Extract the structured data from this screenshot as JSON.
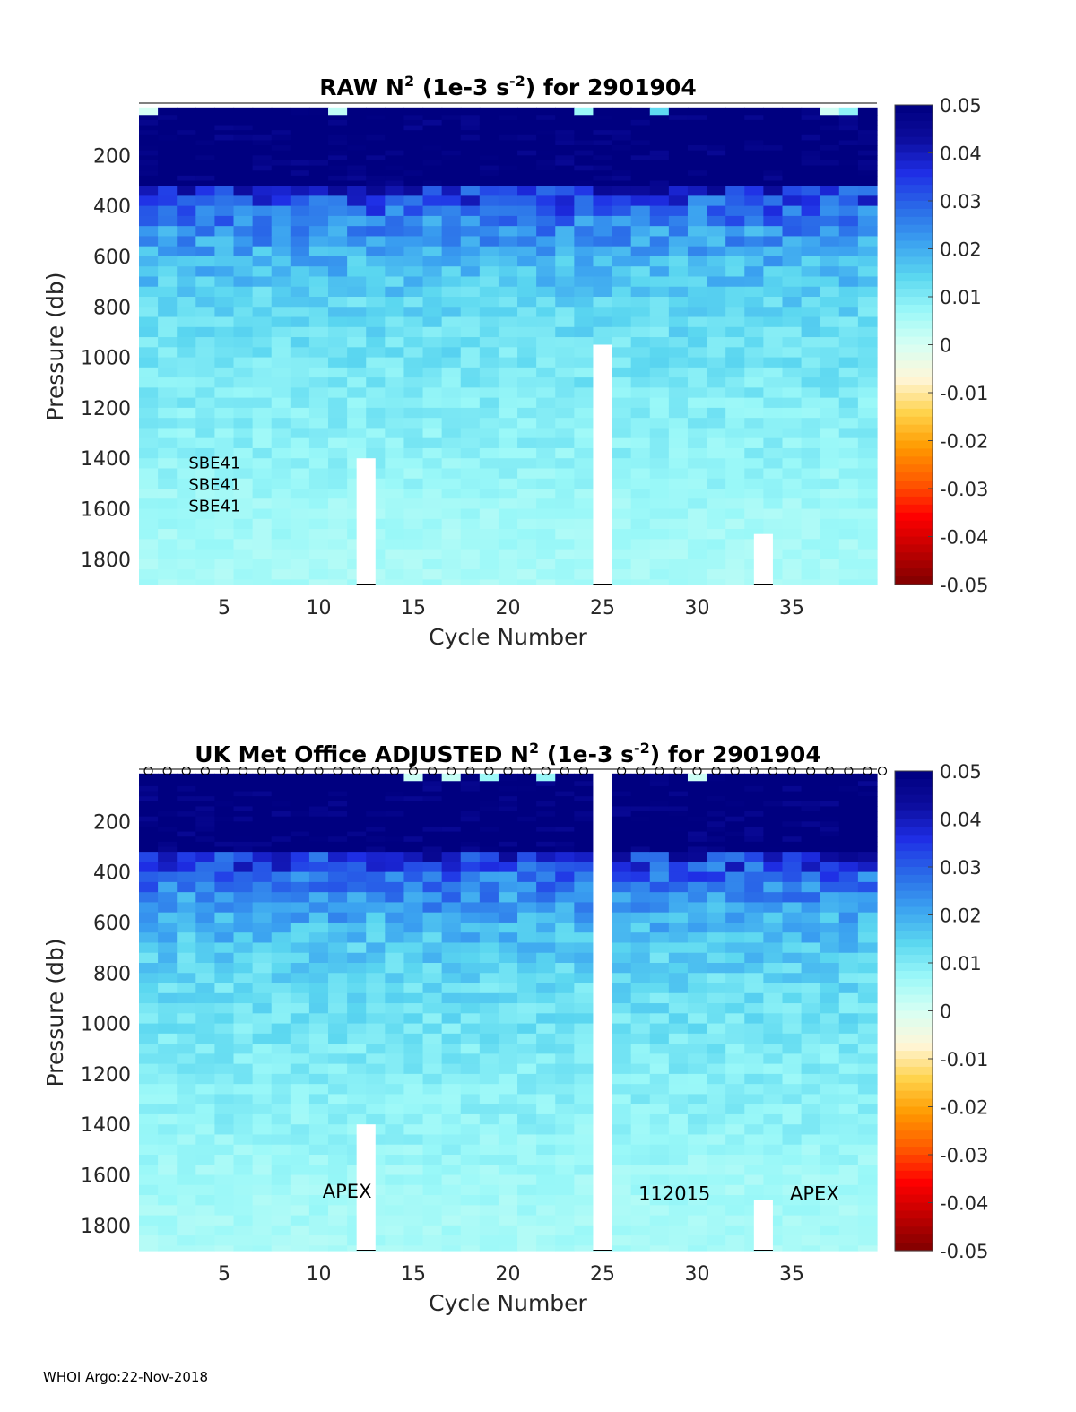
{
  "footer": "WHOI Argo:22-Nov-2018",
  "colors": {
    "colormap": [
      "#7f0000",
      "#c00000",
      "#ff0000",
      "#ff5a00",
      "#ff9a00",
      "#ffd24a",
      "#fff6d8",
      "#d6fff4",
      "#9af8f8",
      "#5ad6f0",
      "#3aa0f0",
      "#2a6ae8",
      "#1f2fe6",
      "#0c0c9c",
      "#000080"
    ],
    "gap": "#ffffff"
  },
  "chart_data": [
    {
      "type": "heatmap",
      "title_parts": {
        "pre": "RAW N",
        "sup1": "2",
        "mid": " (1e-3 s",
        "sup2": "-2",
        "post": ") for 2901904"
      },
      "xlabel": "Cycle Number",
      "ylabel": "Pressure (db)",
      "xlim": [
        1,
        39
      ],
      "ylim": [
        0,
        1900
      ],
      "xticks": [
        "5",
        "10",
        "15",
        "20",
        "25",
        "30",
        "35"
      ],
      "xtick_values": [
        5,
        10,
        15,
        20,
        25,
        30,
        35
      ],
      "yticks": [
        "200",
        "400",
        "600",
        "800",
        "1000",
        "1200",
        "1400",
        "1600",
        "1800"
      ],
      "ytick_values": [
        200,
        400,
        600,
        800,
        1000,
        1200,
        1400,
        1600,
        1800
      ],
      "colorbar": {
        "range": [
          -0.05,
          0.05
        ],
        "ticks": [
          "0.05",
          "0.04",
          "0.03",
          "0.02",
          "0.01",
          "0",
          "-0.01",
          "-0.02",
          "-0.03",
          "-0.04",
          "-0.05"
        ]
      },
      "depth_profile": [
        {
          "p": 20,
          "n2": 0.05
        },
        {
          "p": 300,
          "n2": 0.05
        },
        {
          "p": 330,
          "n2": 0.035
        },
        {
          "p": 450,
          "n2": 0.025
        },
        {
          "p": 600,
          "n2": 0.018
        },
        {
          "p": 800,
          "n2": 0.013
        },
        {
          "p": 1000,
          "n2": 0.011
        },
        {
          "p": 1200,
          "n2": 0.009
        },
        {
          "p": 1400,
          "n2": 0.008
        },
        {
          "p": 1600,
          "n2": 0.006
        },
        {
          "p": 1900,
          "n2": 0.005
        }
      ],
      "gaps": [
        {
          "cycle": 12.5,
          "from_p": 1400
        },
        {
          "cycle": 25,
          "from_p": 950
        },
        {
          "cycle": 33.5,
          "from_p": 1700
        }
      ],
      "flag_markers": false,
      "annotations": [
        {
          "text": "SBE41",
          "x": 4.5,
          "y": 1440
        },
        {
          "text": "SBE41",
          "x": 4.5,
          "y": 1525
        },
        {
          "text": "SBE41",
          "x": 4.5,
          "y": 1610
        }
      ]
    },
    {
      "type": "heatmap",
      "title_parts": {
        "pre": "UK Met Office  ADJUSTED N",
        "sup1": "2",
        "mid": " (1e-3 s",
        "sup2": "-2",
        "post": ") for 2901904"
      },
      "xlabel": "Cycle Number",
      "ylabel": "Pressure (db)",
      "xlim": [
        1,
        39
      ],
      "ylim": [
        0,
        1900
      ],
      "xticks": [
        "5",
        "10",
        "15",
        "20",
        "25",
        "30",
        "35"
      ],
      "xtick_values": [
        5,
        10,
        15,
        20,
        25,
        30,
        35
      ],
      "yticks": [
        "200",
        "400",
        "600",
        "800",
        "1000",
        "1200",
        "1400",
        "1600",
        "1800"
      ],
      "ytick_values": [
        200,
        400,
        600,
        800,
        1000,
        1200,
        1400,
        1600,
        1800
      ],
      "colorbar": {
        "range": [
          -0.05,
          0.05
        ],
        "ticks": [
          "0.05",
          "0.04",
          "0.03",
          "0.02",
          "0.01",
          "0",
          "-0.01",
          "-0.02",
          "-0.03",
          "-0.04",
          "-0.05"
        ]
      },
      "depth_profile": [
        {
          "p": 20,
          "n2": 0.05
        },
        {
          "p": 300,
          "n2": 0.05
        },
        {
          "p": 330,
          "n2": 0.035
        },
        {
          "p": 450,
          "n2": 0.025
        },
        {
          "p": 600,
          "n2": 0.018
        },
        {
          "p": 800,
          "n2": 0.013
        },
        {
          "p": 1000,
          "n2": 0.011
        },
        {
          "p": 1200,
          "n2": 0.009
        },
        {
          "p": 1400,
          "n2": 0.008
        },
        {
          "p": 1600,
          "n2": 0.006
        },
        {
          "p": 1900,
          "n2": 0.005
        }
      ],
      "gaps": [
        {
          "cycle": 12.5,
          "from_p": 1400
        },
        {
          "cycle": 25,
          "from_p": 0
        },
        {
          "cycle": 33.5,
          "from_p": 1700
        }
      ],
      "flag_markers": true,
      "annotations": [
        {
          "text": "APEX",
          "x": 11.5,
          "y": 1690
        },
        {
          "text": "112015",
          "x": 28.8,
          "y": 1700
        },
        {
          "text": "APEX",
          "x": 36.2,
          "y": 1700
        }
      ]
    }
  ]
}
